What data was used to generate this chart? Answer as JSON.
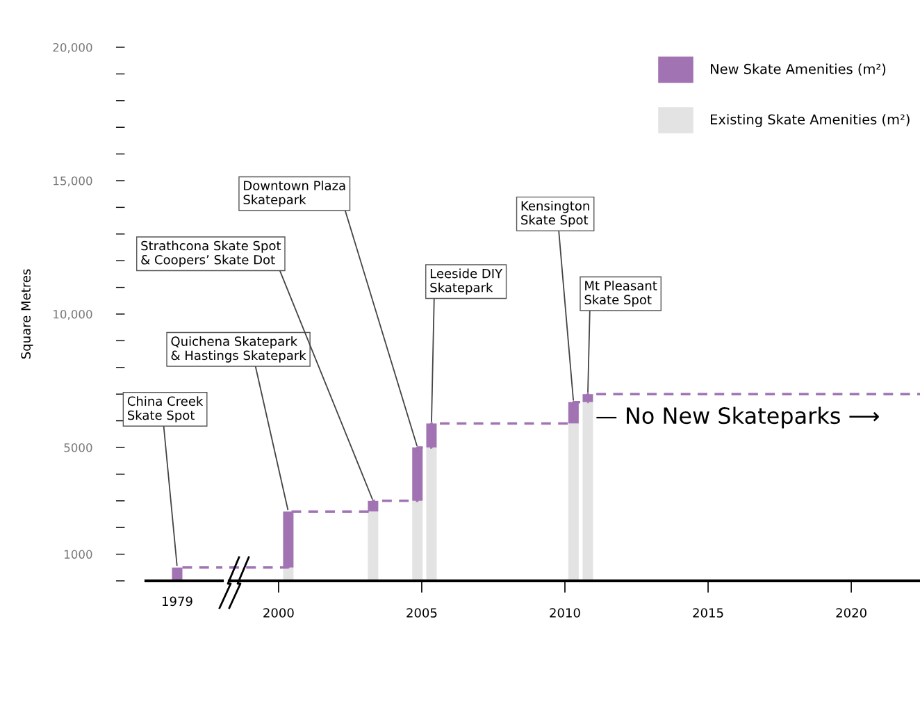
{
  "chart_data": [
    {
      "type": "bar",
      "stacked": true,
      "ylabel": "Square Metres",
      "ylim": [
        0,
        20000
      ],
      "yticks": [
        {
          "value": 0,
          "label": null
        },
        {
          "value": 1000,
          "label": "1000"
        },
        {
          "value": 2000,
          "label": null
        },
        {
          "value": 3000,
          "label": null
        },
        {
          "value": 4000,
          "label": null
        },
        {
          "value": 5000,
          "label": "5000"
        },
        {
          "value": 6000,
          "label": null
        },
        {
          "value": 7000,
          "label": null
        },
        {
          "value": 8000,
          "label": null
        },
        {
          "value": 9000,
          "label": null
        },
        {
          "value": 10000,
          "label": "10,000"
        },
        {
          "value": 11000,
          "label": null
        },
        {
          "value": 12000,
          "label": null
        },
        {
          "value": 13000,
          "label": null
        },
        {
          "value": 14000,
          "label": null
        },
        {
          "value": 15000,
          "label": "15,000"
        },
        {
          "value": 16000,
          "label": null
        },
        {
          "value": 17000,
          "label": null
        },
        {
          "value": 18000,
          "label": null
        },
        {
          "value": 19000,
          "label": null
        },
        {
          "value": 20000,
          "label": "20,000"
        }
      ],
      "categories": [
        "1979"
      ],
      "series": [
        {
          "color": "#a173b3",
          "values": [
            500
          ]
        }
      ],
      "ref_lines": [
        {
          "axis": "y",
          "value": 500,
          "label": null,
          "color": "#a173b3",
          "line_style": "dashed"
        }
      ],
      "annotations": [
        {
          "text": "China Creek\nSkate Spot",
          "x": "1979",
          "y": 500
        }
      ]
    },
    {
      "type": "bar",
      "stacked": true,
      "tick_labels": "x",
      "legend": "top right",
      "xlim": [
        1998.28,
        2022.4
      ],
      "xticks": [
        2000,
        2005,
        2010,
        2015,
        2020
      ],
      "ylim": [
        0,
        20000
      ],
      "x": [
        2000.34,
        2003.3,
        2004.85,
        2005.34,
        2010.3,
        2010.8
      ],
      "series": [
        {
          "name": "Existing Skate Amenities (m²)",
          "color": "#e3e3e3",
          "values": [
            500,
            2600,
            3000,
            5000,
            5900,
            6700
          ]
        },
        {
          "name": "New Skate Amenities (m²)",
          "color": "#a173b3",
          "values": [
            2100,
            400,
            2000,
            900,
            800,
            300
          ]
        },
        {
          "type": "step",
          "color": "#a173b3",
          "line_style": "dashed",
          "x": [
            1998.28,
            2000.34,
            2003.3,
            2004.85,
            2005.34,
            2010.3,
            2010.8,
            2022.4
          ],
          "values": [
            500,
            2600,
            3000,
            5000,
            5900,
            6700,
            7000,
            7000
          ]
        }
      ],
      "annotations": [
        {
          "text": "Quichena Skatepark\n& Hastings Skatepark",
          "x": 2000.34,
          "y": 2600
        },
        {
          "text": "Strathcona Skate Spot\n& Coopers’ Skate Dot",
          "x": 2003.3,
          "y": 3000
        },
        {
          "text": "Downtown Plaza\nSkatepark",
          "x": 2004.85,
          "y": 5000
        },
        {
          "text": "Leeside DIY\nSkatepark",
          "x": 2005.34,
          "y": 5900
        },
        {
          "text": "Kensington\nSkate Spot",
          "x": 2010.3,
          "y": 6700
        },
        {
          "text": "Mt Pleasant\nSkate Spot",
          "x": 2010.8,
          "y": 7000
        },
        "— No New Skateparks ⟶"
      ]
    }
  ]
}
